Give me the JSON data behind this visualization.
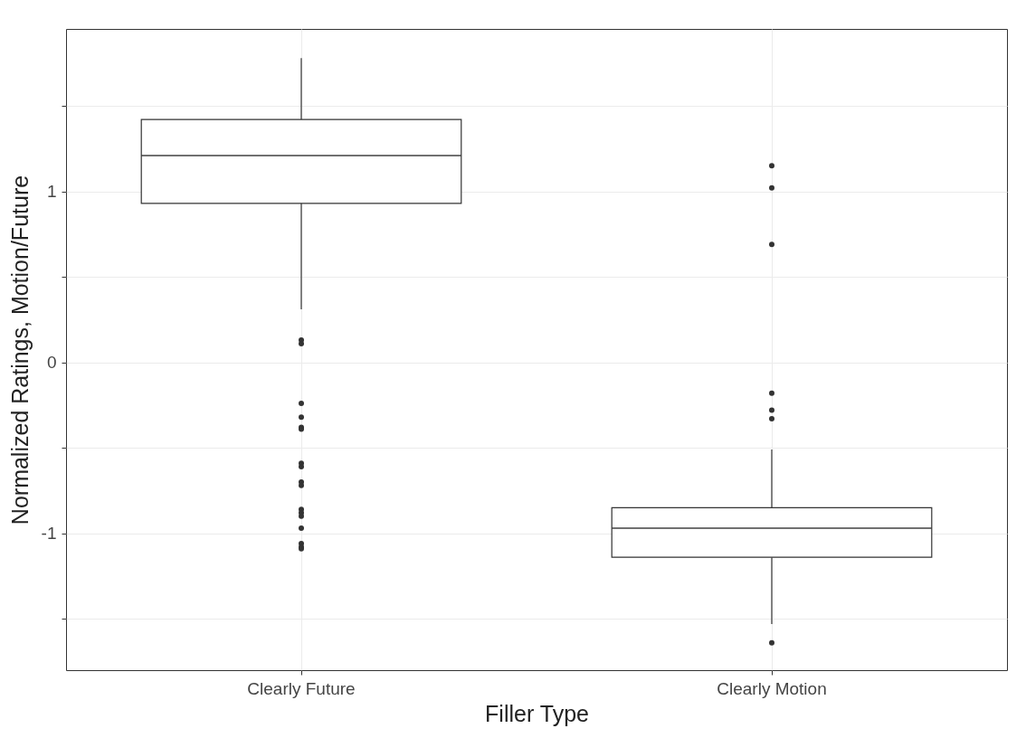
{
  "chart_data": {
    "type": "box",
    "xlabel": "Filler Type",
    "ylabel": "Normalized Ratings, Motion/Future",
    "categories": [
      "Clearly Future",
      "Clearly Motion"
    ],
    "boxes": [
      {
        "low": 0.31,
        "q1": 0.93,
        "median": 1.21,
        "q3": 1.42,
        "high": 1.78,
        "outliers": [
          0.13,
          0.11,
          -0.24,
          -0.32,
          -0.38,
          -0.39,
          -0.59,
          -0.61,
          -0.7,
          -0.72,
          -0.86,
          -0.88,
          -0.9,
          -0.97,
          -1.06,
          -1.08,
          -1.09
        ]
      },
      {
        "low": -1.53,
        "q1": -1.14,
        "median": -0.97,
        "q3": -0.85,
        "high": -0.51,
        "outliers": [
          1.15,
          1.02,
          0.69,
          -0.18,
          -0.28,
          -0.33,
          -1.64
        ]
      }
    ],
    "ylim": [
      -1.8,
      1.95
    ],
    "yticks": [
      {
        "value": -1.5,
        "label": null
      },
      -1,
      {
        "value": -0.5,
        "label": null
      },
      0,
      {
        "value": 0.5,
        "label": null
      },
      1,
      {
        "value": 1.5,
        "label": null
      }
    ],
    "grid": true
  }
}
